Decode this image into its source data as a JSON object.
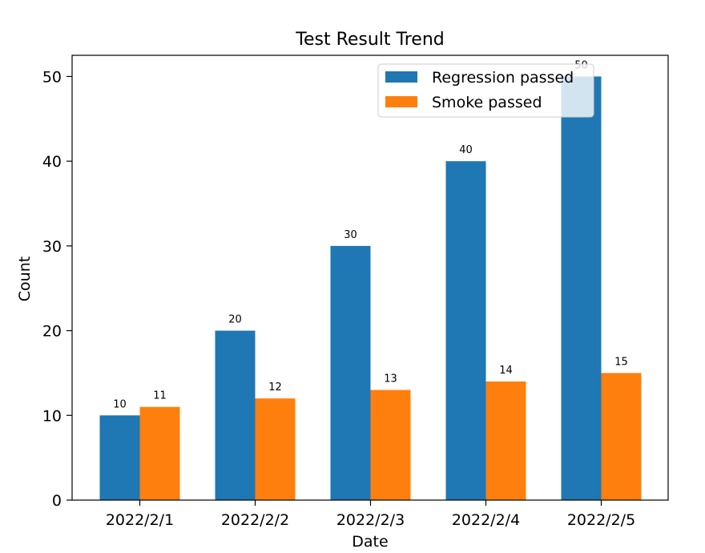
{
  "chart_data": {
    "type": "bar",
    "title": "Test Result Trend",
    "xlabel": "Date",
    "ylabel": "Count",
    "categories": [
      "2022/2/1",
      "2022/2/2",
      "2022/2/3",
      "2022/2/4",
      "2022/2/5"
    ],
    "series": [
      {
        "name": "Regression passed",
        "values": [
          10,
          20,
          30,
          40,
          50
        ],
        "color": "#1f77b4"
      },
      {
        "name": "Smoke passed",
        "values": [
          11,
          12,
          13,
          14,
          15
        ],
        "color": "#ff7f0e"
      }
    ],
    "ylim": [
      0,
      52.5
    ],
    "yticks": [
      0,
      10,
      20,
      30,
      40,
      50
    ],
    "grid": false,
    "legend": "top-right",
    "data_labels": true
  }
}
